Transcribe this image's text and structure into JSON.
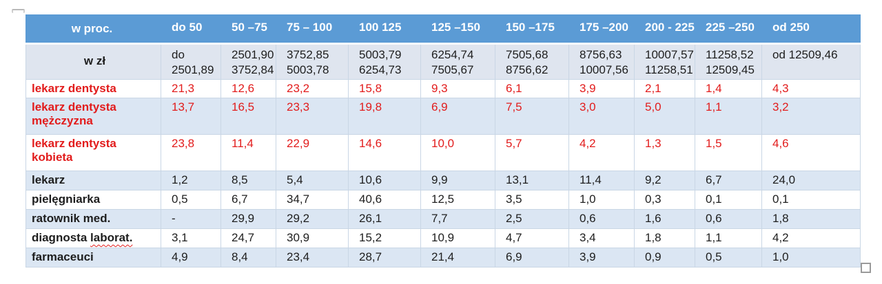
{
  "colors": {
    "header_blue": "#5b9bd5",
    "band_blue": "#dbe6f3",
    "zl_row_blue": "#dfe5ef",
    "red_text": "#e21c1c",
    "body_text": "#1e1e1e",
    "header_text": "#ffffff"
  },
  "table": {
    "header_label": "w proc.",
    "percent_columns": [
      "do 50",
      "50 –75",
      "75 – 100",
      "100 125",
      "125 –150",
      "150 –175",
      "175 –200",
      "200 - 225",
      "225 –250",
      "od 250"
    ],
    "zl_label": "w zł",
    "zl_ranges": [
      [
        "do",
        "2501,89"
      ],
      [
        "2501,90",
        "3752,84"
      ],
      [
        "3752,85",
        "5003,78"
      ],
      [
        "5003,79",
        "6254,73"
      ],
      [
        "6254,74",
        "7505,67"
      ],
      [
        "7505,68",
        "8756,62"
      ],
      [
        "8756,63",
        "10007,56"
      ],
      [
        "10007,57",
        "11258,51"
      ],
      [
        "11258,52",
        "12509,45"
      ],
      [
        "od 12509,46",
        ""
      ]
    ],
    "rows": [
      {
        "id": "lekarz-dentysta",
        "label": "lekarz dentysta",
        "color": "red",
        "values": [
          "21,3",
          "12,6",
          "23,2",
          "15,8",
          "9,3",
          "6,1",
          "3,9",
          "2,1",
          "1,4",
          "4,3"
        ]
      },
      {
        "id": "lekarz-dentysta-mezczyzna",
        "label": "lekarz dentysta",
        "label_line2": "mężczyzna",
        "color": "red",
        "values": [
          "13,7",
          "16,5",
          "23,3",
          "19,8",
          "6,9",
          "7,5",
          "3,0",
          "5,0",
          "1,1",
          "3,2"
        ]
      },
      {
        "id": "lekarz-dentysta-kobieta",
        "label": "lekarz dentysta",
        "label_line2": "kobieta",
        "color": "red",
        "values": [
          "23,8",
          "11,4",
          "22,9",
          "14,6",
          "10,0",
          "5,7",
          "4,2",
          "1,3",
          "1,5",
          "4,6"
        ]
      },
      {
        "id": "lekarz",
        "label": "lekarz",
        "color": "black",
        "values": [
          "1,2",
          "8,5",
          "5,4",
          "10,6",
          "9,9",
          "13,1",
          "11,4",
          "9,2",
          "6,7",
          "24,0"
        ]
      },
      {
        "id": "pielegniarka",
        "label": "pielęgniarka",
        "color": "black",
        "values": [
          "0,5",
          "6,7",
          "34,7",
          "40,6",
          "12,5",
          "3,5",
          "1,0",
          "0,3",
          "0,1",
          "0,1"
        ]
      },
      {
        "id": "ratownik-med",
        "label": "ratownik med.",
        "color": "black",
        "values": [
          "-",
          "29,9",
          "29,2",
          "26,1",
          "7,7",
          "2,5",
          "0,6",
          "1,6",
          "0,6",
          "1,8"
        ]
      },
      {
        "id": "diagnosta-laborat",
        "label": "diagnosta",
        "misspelled": "laborat.",
        "color": "black",
        "values": [
          "3,1",
          "24,7",
          "30,9",
          "15,2",
          "10,9",
          "4,7",
          "3,4",
          "1,8",
          "1,1",
          "4,2"
        ]
      },
      {
        "id": "farmaceuci",
        "label": "farmaceuci",
        "color": "black",
        "values": [
          "4,9",
          "8,4",
          "23,4",
          "28,7",
          "21,4",
          "6,9",
          "3,9",
          "0,9",
          "0,5",
          "1,0"
        ]
      }
    ]
  }
}
